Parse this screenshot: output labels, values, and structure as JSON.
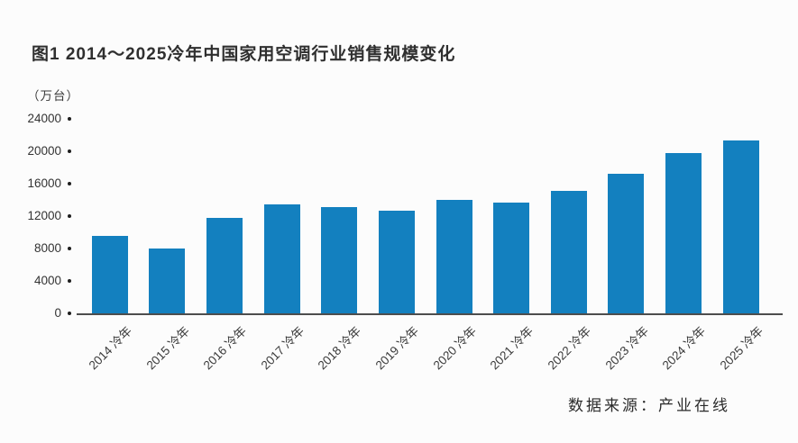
{
  "chart_data": {
    "type": "bar",
    "title": "图1  2014～2025冷年中国家用空调行业销售规模变化",
    "unit_label": "（万台）",
    "xlabel": "",
    "ylabel": "万台",
    "ylim": [
      0,
      24000
    ],
    "yticks": [
      0,
      4000,
      8000,
      12000,
      16000,
      20000,
      24000
    ],
    "categories": [
      "2014 冷年",
      "2015 冷年",
      "2016 冷年",
      "2017 冷年",
      "2018 冷年",
      "2019 冷年",
      "2020 冷年",
      "2021 冷年",
      "2022 冷年",
      "2023 冷年",
      "2024 冷年",
      "2025 冷年"
    ],
    "values": [
      9600,
      8000,
      11800,
      13500,
      13100,
      12700,
      14000,
      13700,
      15100,
      17200,
      19800,
      21300
    ],
    "bar_color": "#1380bf",
    "grid": false,
    "legend": "none",
    "source": "数据来源：产业在线"
  }
}
